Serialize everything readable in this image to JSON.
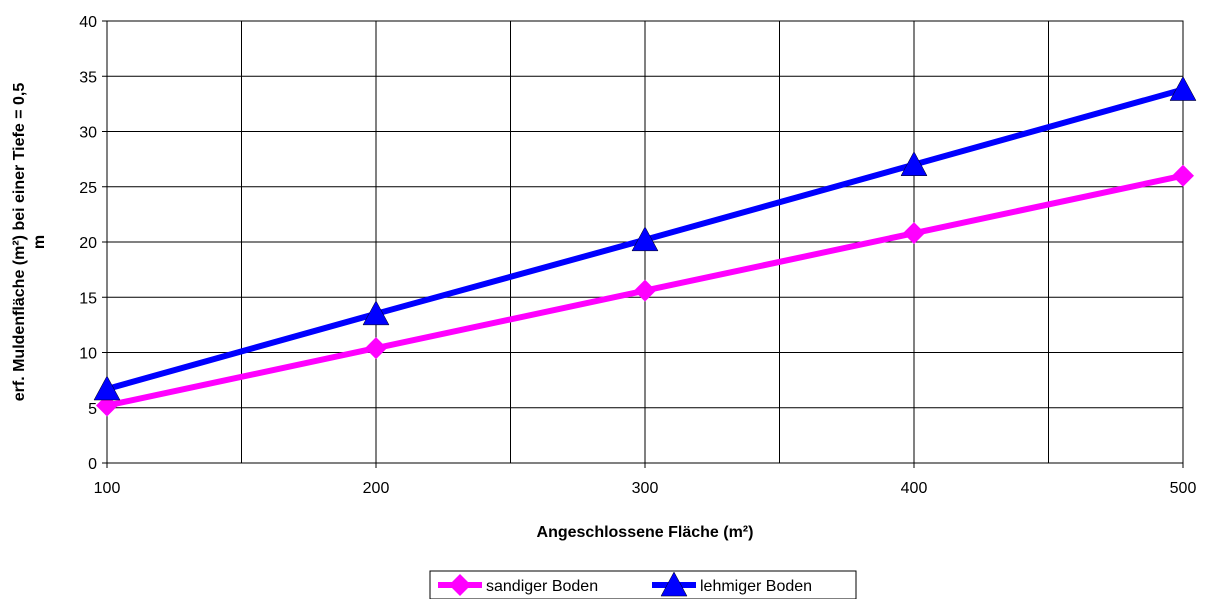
{
  "chart_data": {
    "type": "line",
    "title": "",
    "xlabel": "Angeschlossene Fläche (m²)",
    "ylabel_line1": "erf. Muldenfläche (m²) bei einer Tiefe = 0,5",
    "ylabel_line2": "m",
    "x": [
      100,
      200,
      300,
      400,
      500
    ],
    "xlim": [
      100,
      500
    ],
    "ylim": [
      0,
      40
    ],
    "x_ticks": [
      100,
      200,
      300,
      400,
      500
    ],
    "y_ticks": [
      0,
      5,
      10,
      15,
      20,
      25,
      30,
      35,
      40
    ],
    "grid": true,
    "legend_position": "bottom",
    "series": [
      {
        "name": "sandiger Boden",
        "values": [
          5.2,
          10.4,
          15.6,
          20.8,
          26.0
        ],
        "color": "#ff00ff",
        "marker": "diamond"
      },
      {
        "name": "lehmiger Boden",
        "values": [
          6.7,
          13.5,
          20.2,
          27.0,
          33.8
        ],
        "color": "#0000ff",
        "marker": "triangle"
      }
    ]
  }
}
